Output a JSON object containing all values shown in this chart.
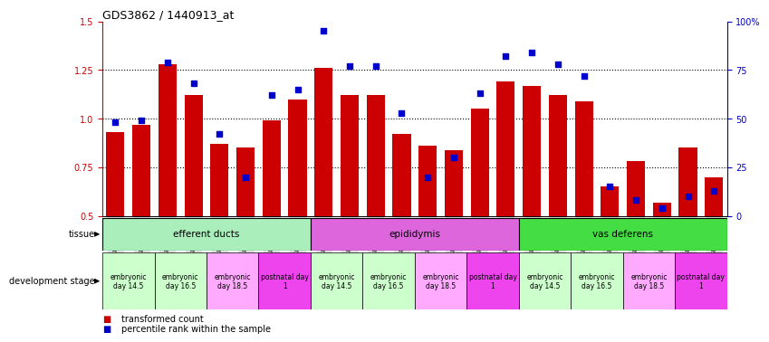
{
  "title": "GDS3862 / 1440913_at",
  "samples": [
    "GSM560923",
    "GSM560924",
    "GSM560925",
    "GSM560926",
    "GSM560927",
    "GSM560928",
    "GSM560929",
    "GSM560930",
    "GSM560931",
    "GSM560932",
    "GSM560933",
    "GSM560934",
    "GSM560935",
    "GSM560936",
    "GSM560937",
    "GSM560938",
    "GSM560939",
    "GSM560940",
    "GSM560941",
    "GSM560942",
    "GSM560943",
    "GSM560944",
    "GSM560945",
    "GSM560946"
  ],
  "transformed_count": [
    0.93,
    0.97,
    1.28,
    1.12,
    0.87,
    0.85,
    0.99,
    1.1,
    1.26,
    1.12,
    1.12,
    0.92,
    0.86,
    0.84,
    1.05,
    1.19,
    1.17,
    1.12,
    1.09,
    0.65,
    0.78,
    0.57,
    0.85,
    0.7
  ],
  "percentile_rank": [
    48,
    49,
    79,
    68,
    42,
    20,
    62,
    65,
    95,
    77,
    77,
    53,
    20,
    30,
    63,
    82,
    84,
    78,
    72,
    15,
    8,
    4,
    10,
    13
  ],
  "ylim_left": [
    0.5,
    1.5
  ],
  "ylim_right": [
    0,
    100
  ],
  "yticks_left": [
    0.5,
    0.75,
    1.0,
    1.25,
    1.5
  ],
  "yticks_right": [
    0,
    25,
    50,
    75,
    100
  ],
  "ytick_labels_right": [
    "0",
    "25",
    "50",
    "75",
    "100%"
  ],
  "bar_color": "#cc0000",
  "dot_color": "#0000cc",
  "tissues": [
    {
      "label": "efferent ducts",
      "start": 0,
      "end": 8,
      "color": "#aaeebb"
    },
    {
      "label": "epididymis",
      "start": 8,
      "end": 16,
      "color": "#dd66dd"
    },
    {
      "label": "vas deferens",
      "start": 16,
      "end": 24,
      "color": "#44dd44"
    }
  ],
  "dev_stages": [
    {
      "label": "embryonic\nday 14.5",
      "start": 0,
      "end": 2,
      "color": "#ccffcc"
    },
    {
      "label": "embryonic\nday 16.5",
      "start": 2,
      "end": 4,
      "color": "#ccffcc"
    },
    {
      "label": "embryonic\nday 18.5",
      "start": 4,
      "end": 6,
      "color": "#ffaaff"
    },
    {
      "label": "postnatal day\n1",
      "start": 6,
      "end": 8,
      "color": "#ee44ee"
    },
    {
      "label": "embryonic\nday 14.5",
      "start": 8,
      "end": 10,
      "color": "#ccffcc"
    },
    {
      "label": "embryonic\nday 16.5",
      "start": 10,
      "end": 12,
      "color": "#ccffcc"
    },
    {
      "label": "embryonic\nday 18.5",
      "start": 12,
      "end": 14,
      "color": "#ffaaff"
    },
    {
      "label": "postnatal day\n1",
      "start": 14,
      "end": 16,
      "color": "#ee44ee"
    },
    {
      "label": "embryonic\nday 14.5",
      "start": 16,
      "end": 18,
      "color": "#ccffcc"
    },
    {
      "label": "embryonic\nday 16.5",
      "start": 18,
      "end": 20,
      "color": "#ccffcc"
    },
    {
      "label": "embryonic\nday 18.5",
      "start": 20,
      "end": 22,
      "color": "#ffaaff"
    },
    {
      "label": "postnatal day\n1",
      "start": 22,
      "end": 24,
      "color": "#ee44ee"
    }
  ],
  "legend_items": [
    {
      "label": "transformed count",
      "color": "#cc0000"
    },
    {
      "label": "percentile rank within the sample",
      "color": "#0000cc"
    }
  ],
  "background_color": "#ffffff",
  "tick_bg_color": "#dddddd"
}
